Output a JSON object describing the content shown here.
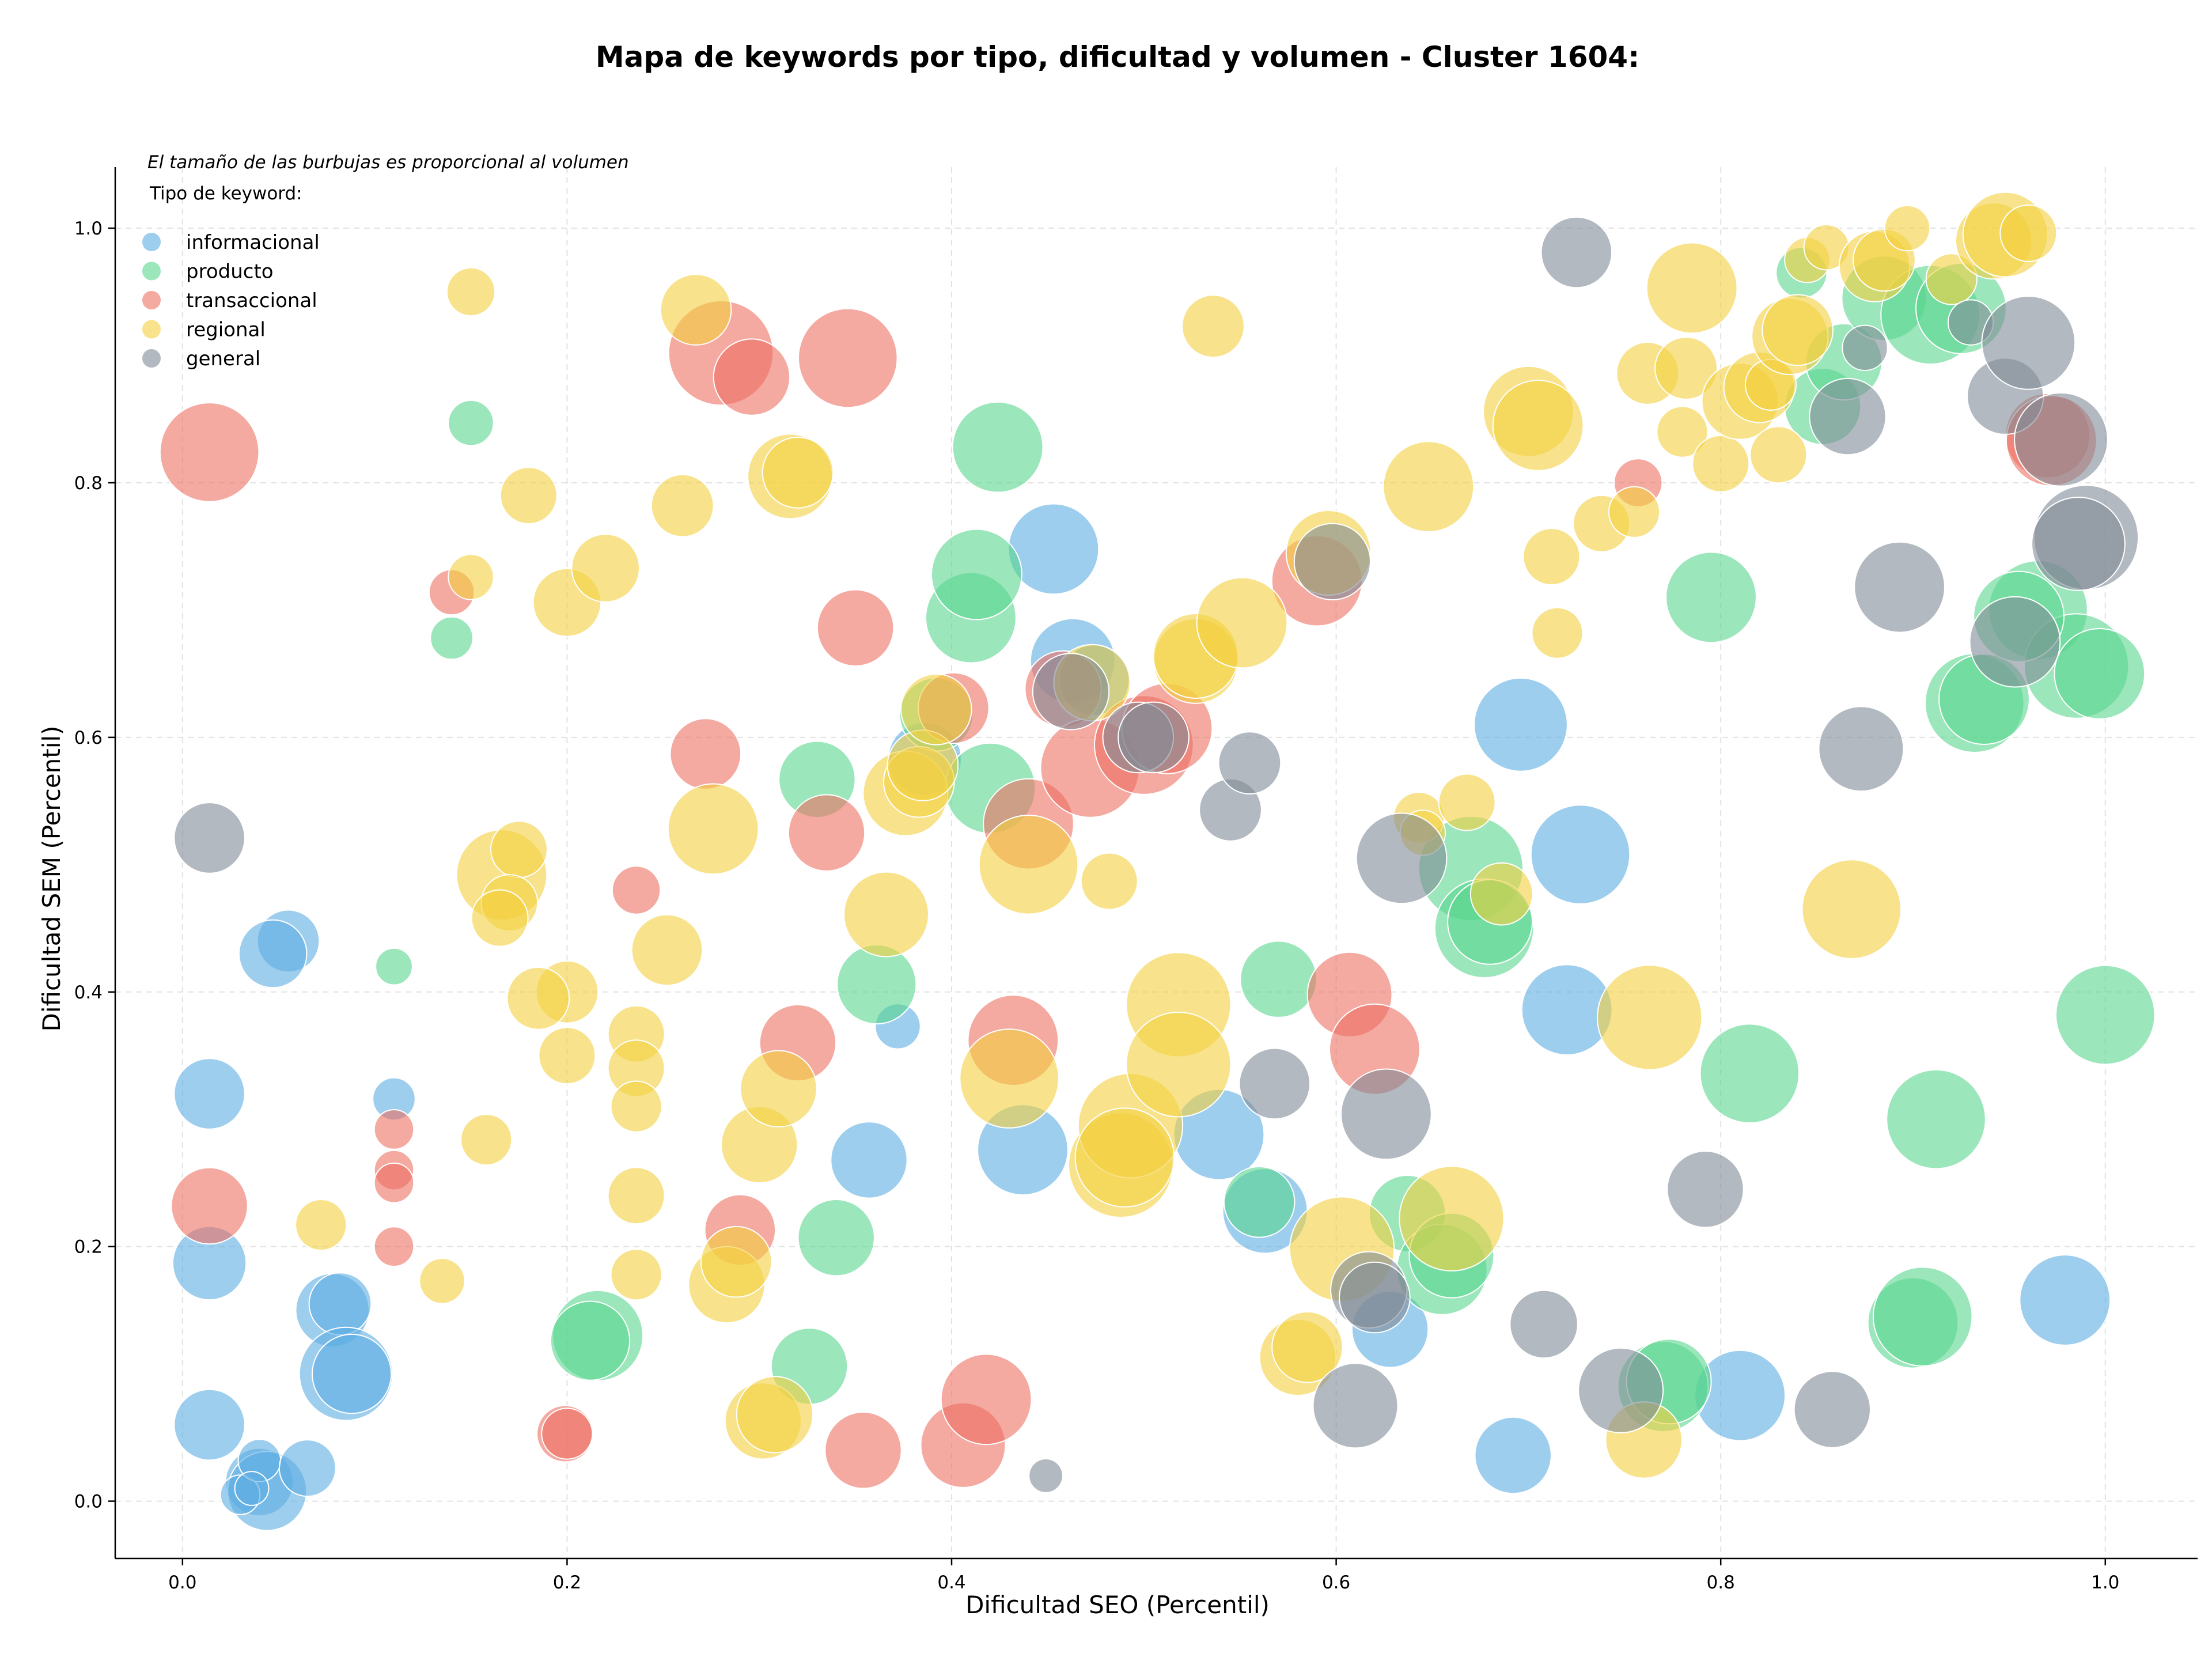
{
  "chart_data": {
    "type": "scatter",
    "title": "Mapa de keywords por tipo, dificultad y volumen - Cluster 1604:",
    "xlabel": "Dificultad SEO (Percentil)",
    "ylabel": "Dificultad SEM (Percentil)",
    "annotation": "El tamaño de las burbujas es proporcional al volumen",
    "legend_title": "Tipo de keyword:",
    "legend_position": "top-left",
    "xlim": [
      -0.035,
      1.048
    ],
    "ylim": [
      -0.045,
      1.048
    ],
    "xticks": [
      "0.0",
      "0.2",
      "0.4",
      "0.6",
      "0.8",
      "1.0"
    ],
    "yticks": [
      "0.0",
      "0.2",
      "0.4",
      "0.6",
      "0.8",
      "1.0"
    ],
    "xtick_values": [
      0,
      0.2,
      0.4,
      0.6,
      0.8,
      1.0
    ],
    "ytick_values": [
      0,
      0.2,
      0.4,
      0.6,
      0.8,
      1.0
    ],
    "grid": true,
    "point_format": [
      "x",
      "y",
      "size"
    ],
    "series": [
      {
        "name": "informacional",
        "color": "#5DADE2",
        "points": [
          [
            0.055,
            0.44,
            22
          ],
          [
            0.047,
            0.43,
            24
          ],
          [
            0.014,
            0.32,
            25
          ],
          [
            0.014,
            0.187,
            26
          ],
          [
            0.014,
            0.06,
            25
          ],
          [
            0.078,
            0.15,
            26
          ],
          [
            0.082,
            0.155,
            22
          ],
          [
            0.085,
            0.1,
            33
          ],
          [
            0.088,
            0.1,
            28
          ],
          [
            0.04,
            0.015,
            24
          ],
          [
            0.044,
            0.008,
            28
          ],
          [
            0.03,
            0.005,
            14
          ],
          [
            0.04,
            0.032,
            15
          ],
          [
            0.036,
            0.01,
            12
          ],
          [
            0.065,
            0.026,
            20
          ],
          [
            0.11,
            0.316,
            15
          ],
          [
            0.357,
            0.268,
            27
          ],
          [
            0.372,
            0.373,
            16
          ],
          [
            0.386,
            0.583,
            26
          ],
          [
            0.437,
            0.276,
            32
          ],
          [
            0.453,
            0.748,
            32
          ],
          [
            0.463,
            0.66,
            30
          ],
          [
            0.474,
            0.645,
            25
          ],
          [
            0.539,
            0.288,
            32
          ],
          [
            0.563,
            0.228,
            30
          ],
          [
            0.628,
            0.135,
            27
          ],
          [
            0.696,
            0.61,
            33
          ],
          [
            0.72,
            0.386,
            32
          ],
          [
            0.727,
            0.508,
            35
          ],
          [
            0.692,
            0.036,
            27
          ],
          [
            0.81,
            0.083,
            32
          ],
          [
            0.979,
            0.158,
            32
          ]
        ]
      },
      {
        "name": "producto",
        "color": "#58D68D",
        "points": [
          [
            0.15,
            0.847,
            16
          ],
          [
            0.14,
            0.678,
            15
          ],
          [
            0.11,
            0.42,
            13
          ],
          [
            0.216,
            0.13,
            32
          ],
          [
            0.212,
            0.126,
            28
          ],
          [
            0.34,
            0.207,
            27
          ],
          [
            0.326,
            0.106,
            27
          ],
          [
            0.33,
            0.567,
            27
          ],
          [
            0.361,
            0.406,
            28
          ],
          [
            0.392,
            0.618,
            26
          ],
          [
            0.41,
            0.694,
            32
          ],
          [
            0.413,
            0.728,
            32
          ],
          [
            0.424,
            0.828,
            32
          ],
          [
            0.42,
            0.56,
            32
          ],
          [
            0.57,
            0.41,
            27
          ],
          [
            0.56,
            0.235,
            25
          ],
          [
            0.637,
            0.226,
            27
          ],
          [
            0.655,
            0.182,
            32
          ],
          [
            0.66,
            0.193,
            30
          ],
          [
            0.67,
            0.497,
            37
          ],
          [
            0.677,
            0.45,
            35
          ],
          [
            0.68,
            0.455,
            30
          ],
          [
            0.77,
            0.09,
            32
          ],
          [
            0.773,
            0.094,
            30
          ],
          [
            0.795,
            0.71,
            32
          ],
          [
            0.815,
            0.336,
            35
          ],
          [
            0.9,
            0.14,
            32
          ],
          [
            0.905,
            0.145,
            35
          ],
          [
            0.912,
            0.3,
            35
          ],
          [
            0.932,
            0.627,
            35
          ],
          [
            0.937,
            0.63,
            32
          ],
          [
            0.965,
            0.7,
            35
          ],
          [
            0.985,
            0.656,
            37
          ],
          [
            0.997,
            0.65,
            32
          ],
          [
            1.0,
            0.382,
            35
          ],
          [
            0.842,
            0.965,
            18
          ],
          [
            0.853,
            0.86,
            27
          ],
          [
            0.864,
            0.895,
            27
          ],
          [
            0.885,
            0.945,
            30
          ],
          [
            0.909,
            0.932,
            35
          ],
          [
            0.925,
            0.937,
            32
          ],
          [
            0.955,
            0.695,
            32
          ]
        ]
      },
      {
        "name": "transaccional",
        "color": "#EC7063",
        "points": [
          [
            0.014,
            0.824,
            35
          ],
          [
            0.014,
            0.232,
            27
          ],
          [
            0.14,
            0.714,
            16
          ],
          [
            0.11,
            0.292,
            14
          ],
          [
            0.11,
            0.26,
            14
          ],
          [
            0.11,
            0.25,
            14
          ],
          [
            0.11,
            0.2,
            14
          ],
          [
            0.199,
            0.053,
            20
          ],
          [
            0.2,
            0.053,
            18
          ],
          [
            0.236,
            0.48,
            17
          ],
          [
            0.28,
            0.902,
            37
          ],
          [
            0.296,
            0.883,
            27
          ],
          [
            0.272,
            0.587,
            25
          ],
          [
            0.29,
            0.213,
            25
          ],
          [
            0.335,
            0.525,
            27
          ],
          [
            0.32,
            0.36,
            27
          ],
          [
            0.346,
            0.898,
            35
          ],
          [
            0.35,
            0.686,
            27
          ],
          [
            0.354,
            0.04,
            27
          ],
          [
            0.401,
            0.623,
            25
          ],
          [
            0.406,
            0.044,
            30
          ],
          [
            0.418,
            0.08,
            32
          ],
          [
            0.432,
            0.362,
            32
          ],
          [
            0.44,
            0.532,
            32
          ],
          [
            0.458,
            0.638,
            27
          ],
          [
            0.472,
            0.576,
            35
          ],
          [
            0.5,
            0.594,
            35
          ],
          [
            0.512,
            0.607,
            32
          ],
          [
            0.59,
            0.723,
            32
          ],
          [
            0.607,
            0.398,
            30
          ],
          [
            0.62,
            0.355,
            32
          ],
          [
            0.757,
            0.8,
            17
          ],
          [
            0.97,
            0.837,
            30
          ],
          [
            0.972,
            0.833,
            32
          ]
        ]
      },
      {
        "name": "regional",
        "color": "#F4D03F",
        "points": [
          [
            0.15,
            0.95,
            17
          ],
          [
            0.15,
            0.726,
            16
          ],
          [
            0.18,
            0.79,
            20
          ],
          [
            0.2,
            0.706,
            24
          ],
          [
            0.22,
            0.733,
            24
          ],
          [
            0.26,
            0.782,
            22
          ],
          [
            0.267,
            0.936,
            25
          ],
          [
            0.166,
            0.492,
            32
          ],
          [
            0.175,
            0.512,
            20
          ],
          [
            0.17,
            0.47,
            20
          ],
          [
            0.165,
            0.458,
            20
          ],
          [
            0.2,
            0.4,
            22
          ],
          [
            0.185,
            0.395,
            22
          ],
          [
            0.2,
            0.35,
            20
          ],
          [
            0.158,
            0.284,
            18
          ],
          [
            0.072,
            0.217,
            18
          ],
          [
            0.135,
            0.173,
            16
          ],
          [
            0.236,
            0.367,
            20
          ],
          [
            0.236,
            0.34,
            20
          ],
          [
            0.236,
            0.31,
            18
          ],
          [
            0.236,
            0.24,
            20
          ],
          [
            0.236,
            0.178,
            18
          ],
          [
            0.252,
            0.433,
            25
          ],
          [
            0.276,
            0.528,
            32
          ],
          [
            0.283,
            0.17,
            27
          ],
          [
            0.288,
            0.188,
            25
          ],
          [
            0.3,
            0.28,
            27
          ],
          [
            0.31,
            0.324,
            27
          ],
          [
            0.302,
            0.063,
            27
          ],
          [
            0.308,
            0.068,
            27
          ],
          [
            0.316,
            0.805,
            30
          ],
          [
            0.32,
            0.808,
            25
          ],
          [
            0.366,
            0.461,
            30
          ],
          [
            0.376,
            0.556,
            30
          ],
          [
            0.383,
            0.565,
            25
          ],
          [
            0.385,
            0.578,
            25
          ],
          [
            0.392,
            0.622,
            25
          ],
          [
            0.44,
            0.5,
            35
          ],
          [
            0.43,
            0.332,
            35
          ],
          [
            0.473,
            0.643,
            27
          ],
          [
            0.482,
            0.487,
            20
          ],
          [
            0.488,
            0.264,
            37
          ],
          [
            0.493,
            0.295,
            37
          ],
          [
            0.49,
            0.27,
            35
          ],
          [
            0.518,
            0.39,
            37
          ],
          [
            0.518,
            0.343,
            37
          ],
          [
            0.527,
            0.66,
            30
          ],
          [
            0.527,
            0.664,
            30
          ],
          [
            0.536,
            0.923,
            22
          ],
          [
            0.551,
            0.69,
            32
          ],
          [
            0.58,
            0.113,
            27
          ],
          [
            0.585,
            0.121,
            25
          ],
          [
            0.596,
            0.745,
            30
          ],
          [
            0.603,
            0.198,
            37
          ],
          [
            0.648,
            0.797,
            32
          ],
          [
            0.66,
            0.222,
            37
          ],
          [
            0.643,
            0.537,
            18
          ],
          [
            0.645,
            0.525,
            16
          ],
          [
            0.668,
            0.549,
            20
          ],
          [
            0.686,
            0.477,
            22
          ],
          [
            0.7,
            0.856,
            32
          ],
          [
            0.705,
            0.845,
            32
          ],
          [
            0.712,
            0.742,
            20
          ],
          [
            0.715,
            0.682,
            18
          ],
          [
            0.738,
            0.768,
            20
          ],
          [
            0.755,
            0.777,
            18
          ],
          [
            0.76,
            0.048,
            27
          ],
          [
            0.763,
            0.38,
            37
          ],
          [
            0.762,
            0.886,
            22
          ],
          [
            0.785,
            0.953,
            32
          ],
          [
            0.782,
            0.89,
            22
          ],
          [
            0.78,
            0.84,
            18
          ],
          [
            0.8,
            0.815,
            20
          ],
          [
            0.81,
            0.864,
            27
          ],
          [
            0.82,
            0.875,
            25
          ],
          [
            0.826,
            0.877,
            18
          ],
          [
            0.83,
            0.822,
            20
          ],
          [
            0.836,
            0.915,
            27
          ],
          [
            0.84,
            0.92,
            25
          ],
          [
            0.845,
            0.975,
            16
          ],
          [
            0.855,
            0.985,
            16
          ],
          [
            0.868,
            0.465,
            35
          ],
          [
            0.88,
            0.97,
            25
          ],
          [
            0.885,
            0.975,
            22
          ],
          [
            0.897,
            1.0,
            16
          ],
          [
            0.92,
            0.96,
            18
          ],
          [
            0.942,
            0.99,
            27
          ],
          [
            0.948,
            0.995,
            30
          ],
          [
            0.96,
            0.996,
            20
          ]
        ]
      },
      {
        "name": "general",
        "color": "#808B96",
        "points": [
          [
            0.014,
            0.521,
            25
          ],
          [
            0.449,
            0.02,
            12
          ],
          [
            0.462,
            0.636,
            27
          ],
          [
            0.497,
            0.6,
            25
          ],
          [
            0.505,
            0.6,
            25
          ],
          [
            0.545,
            0.543,
            22
          ],
          [
            0.555,
            0.58,
            22
          ],
          [
            0.568,
            0.328,
            25
          ],
          [
            0.598,
            0.738,
            27
          ],
          [
            0.61,
            0.075,
            30
          ],
          [
            0.617,
            0.166,
            27
          ],
          [
            0.62,
            0.16,
            25
          ],
          [
            0.626,
            0.304,
            32
          ],
          [
            0.634,
            0.505,
            32
          ],
          [
            0.708,
            0.139,
            24
          ],
          [
            0.725,
            0.981,
            25
          ],
          [
            0.748,
            0.087,
            30
          ],
          [
            0.792,
            0.245,
            27
          ],
          [
            0.858,
            0.072,
            27
          ],
          [
            0.866,
            0.852,
            27
          ],
          [
            0.873,
            0.591,
            30
          ],
          [
            0.875,
            0.906,
            16
          ],
          [
            0.893,
            0.718,
            32
          ],
          [
            0.93,
            0.926,
            16
          ],
          [
            0.948,
            0.868,
            27
          ],
          [
            0.953,
            0.675,
            32
          ],
          [
            0.96,
            0.91,
            33
          ],
          [
            0.977,
            0.834,
            33
          ],
          [
            0.99,
            0.757,
            37
          ],
          [
            0.986,
            0.752,
            33
          ]
        ]
      }
    ]
  }
}
